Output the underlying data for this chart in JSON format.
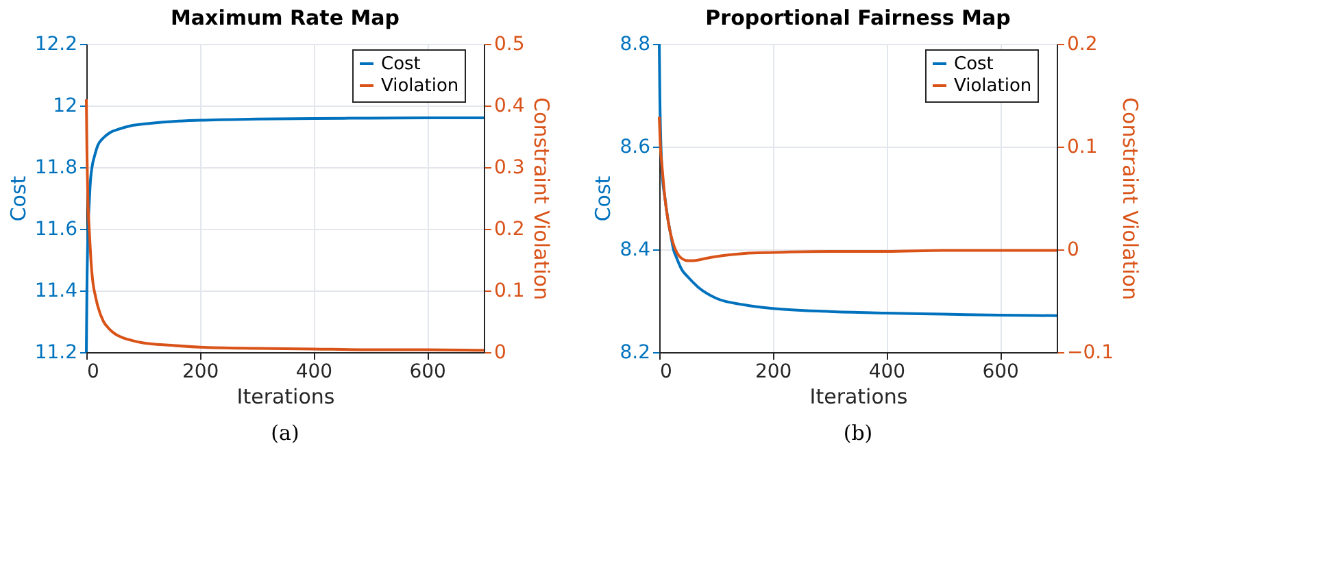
{
  "chart_data": [
    {
      "type": "line",
      "title": "Maximum Rate Map",
      "xlabel": "Iterations",
      "ylabel": "Cost",
      "y2label": "Constraint Violation",
      "xlim": [
        0,
        700
      ],
      "xticks": [
        0,
        200,
        400,
        600
      ],
      "ylim": [
        11.2,
        12.2
      ],
      "yticks": [
        11.2,
        11.4,
        11.6,
        11.8,
        12,
        12.2
      ],
      "y2lim": [
        0,
        0.5
      ],
      "y2ticks": [
        0,
        0.1,
        0.2,
        0.3,
        0.4,
        0.5
      ],
      "grid": true,
      "legend": "top right",
      "annotations": [
        "(a)"
      ],
      "series": [
        {
          "name": "Cost",
          "color": "#0072bd",
          "x": [
            0,
            1,
            3,
            5,
            7,
            10,
            15,
            20,
            30,
            40,
            60,
            80,
            100,
            150,
            200,
            300,
            400,
            500,
            600,
            700
          ],
          "values": [
            11.2,
            11.4,
            11.6,
            11.68,
            11.75,
            11.8,
            11.84,
            11.87,
            11.895,
            11.91,
            11.925,
            11.935,
            11.94,
            11.948,
            11.952,
            11.956,
            11.958,
            11.959,
            11.96,
            11.96
          ]
        },
        {
          "name": "Violation",
          "color": "#d95319",
          "axis": "y2",
          "x": [
            0,
            1,
            3,
            5,
            8,
            12,
            15,
            20,
            30,
            40,
            50,
            60,
            80,
            100,
            150,
            200,
            300,
            400,
            500,
            600,
            700
          ],
          "values": [
            0.41,
            0.33,
            0.24,
            0.2,
            0.15,
            0.11,
            0.095,
            0.075,
            0.05,
            0.038,
            0.03,
            0.025,
            0.019,
            0.015,
            0.011,
            0.008,
            0.006,
            0.005,
            0.004,
            0.004,
            0.003
          ]
        }
      ]
    },
    {
      "type": "line",
      "title": "Proportional Fairness Map",
      "xlabel": "Iterations",
      "ylabel": "Cost",
      "y2label": "Constraint Violation",
      "xlim": [
        0,
        700
      ],
      "xticks": [
        0,
        200,
        400,
        600
      ],
      "ylim": [
        8.2,
        8.8
      ],
      "yticks": [
        8.2,
        8.4,
        8.6,
        8.8
      ],
      "y2lim": [
        -0.1,
        0.2
      ],
      "y2ticks": [
        -0.1,
        0,
        0.1,
        0.2
      ],
      "grid": true,
      "legend": "top right",
      "annotations": [
        "(b)"
      ],
      "series": [
        {
          "name": "Cost",
          "color": "#0072bd",
          "x": [
            0,
            1,
            3,
            5,
            10,
            15,
            20,
            25,
            30,
            40,
            50,
            70,
            100,
            150,
            200,
            300,
            400,
            500,
            600,
            700
          ],
          "values": [
            8.8,
            8.7,
            8.6,
            8.55,
            8.5,
            8.46,
            8.43,
            8.4,
            8.385,
            8.36,
            8.347,
            8.325,
            8.305,
            8.292,
            8.285,
            8.279,
            8.276,
            8.274,
            8.272,
            8.271
          ]
        },
        {
          "name": "Violation",
          "color": "#d95319",
          "axis": "y2",
          "x": [
            0,
            2,
            5,
            10,
            15,
            20,
            25,
            30,
            40,
            50,
            60,
            80,
            100,
            150,
            200,
            300,
            400,
            500,
            600,
            700
          ],
          "values": [
            0.129,
            0.1,
            0.08,
            0.05,
            0.03,
            0.015,
            0.005,
            -0.002,
            -0.009,
            -0.011,
            -0.011,
            -0.009,
            -0.007,
            -0.004,
            -0.003,
            -0.002,
            -0.002,
            -0.001,
            -0.001,
            -0.001
          ]
        }
      ]
    }
  ]
}
